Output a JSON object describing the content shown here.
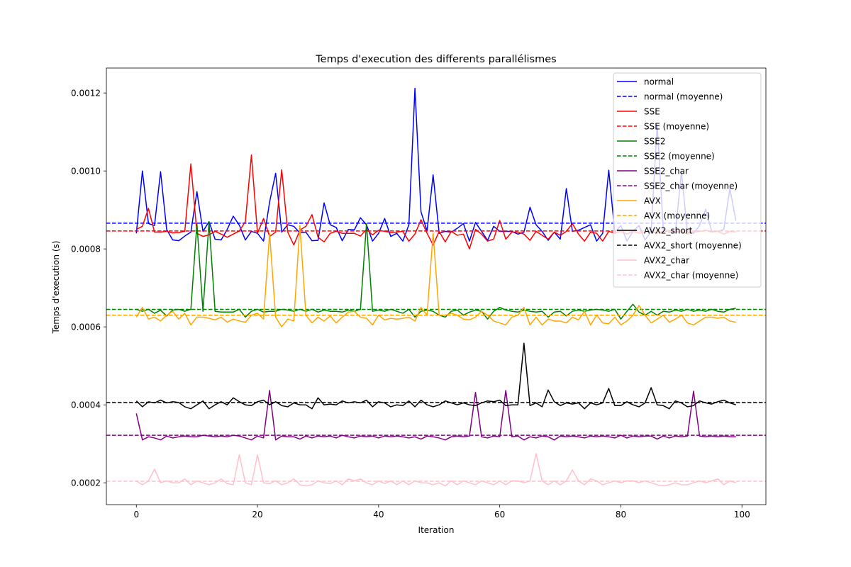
{
  "chart_data": {
    "type": "line",
    "title": "Temps d'execution des differents parallélismes",
    "xlabel": "Iteration",
    "ylabel": "Temps d'execution (s)",
    "xlim": [
      -4.95,
      103.95
    ],
    "ylim": [
      0.000144,
      0.001264
    ],
    "xticks": [
      0,
      20,
      40,
      60,
      80,
      100
    ],
    "yticks": [
      0.0002,
      0.0004,
      0.0006,
      0.0008,
      0.001,
      0.0012
    ],
    "ytick_labels": [
      "0.0002",
      "0.0004",
      "0.0006",
      "0.0008",
      "0.0010",
      "0.0012"
    ],
    "grid": false,
    "legend_position": "upper right",
    "x": [
      0,
      1,
      2,
      3,
      4,
      5,
      6,
      7,
      8,
      9,
      10,
      11,
      12,
      13,
      14,
      15,
      16,
      17,
      18,
      19,
      20,
      21,
      22,
      23,
      24,
      25,
      26,
      27,
      28,
      29,
      30,
      31,
      32,
      33,
      34,
      35,
      36,
      37,
      38,
      39,
      40,
      41,
      42,
      43,
      44,
      45,
      46,
      47,
      48,
      49,
      50,
      51,
      52,
      53,
      54,
      55,
      56,
      57,
      58,
      59,
      60,
      61,
      62,
      63,
      64,
      65,
      66,
      67,
      68,
      69,
      70,
      71,
      72,
      73,
      74,
      75,
      76,
      77,
      78,
      79,
      80,
      81,
      82,
      83,
      84,
      85,
      86,
      87,
      88,
      89,
      90,
      91,
      92,
      93,
      94,
      95,
      96,
      97,
      98,
      99
    ],
    "series": [
      {
        "name": "normal",
        "color": "#0000ff",
        "mean_label": "normal (moyenne)",
        "mean": 0.000866,
        "values": [
          0.00084,
          0.001,
          0.000865,
          0.00086,
          0.000998,
          0.00085,
          0.000823,
          0.000821,
          0.000833,
          0.000843,
          0.000947,
          0.000845,
          0.00087,
          0.000825,
          0.000823,
          0.00085,
          0.000884,
          0.000861,
          0.000823,
          0.000845,
          0.00084,
          0.00082,
          0.00092,
          0.000994,
          0.000843,
          0.000862,
          0.000858,
          0.000841,
          0.000843,
          0.000821,
          0.000822,
          0.000918,
          0.000862,
          0.000855,
          0.000821,
          0.00085,
          0.000849,
          0.00088,
          0.000862,
          0.00082,
          0.00084,
          0.000878,
          0.000832,
          0.00084,
          0.00082,
          0.000862,
          0.001212,
          0.000895,
          0.000846,
          0.00099,
          0.00084,
          0.000845,
          0.000843,
          0.000853,
          0.000865,
          0.00082,
          0.000868,
          0.000845,
          0.000822,
          0.000858,
          0.000845,
          0.000845,
          0.000845,
          0.000838,
          0.000843,
          0.000907,
          0.000862,
          0.000845,
          0.000822,
          0.000843,
          0.000825,
          0.000955,
          0.000845,
          0.000848,
          0.000855,
          0.000862,
          0.00082,
          0.00084,
          0.001002,
          0.000843,
          0.00086,
          0.00082,
          0.000845,
          0.00086,
          0.000823,
          0.000845,
          0.001118,
          0.00085,
          0.000843,
          0.00084,
          0.000998,
          0.000843,
          0.00084,
          0.00086,
          0.000902,
          0.000845,
          0.000845,
          0.00085,
          0.000955,
          0.000872
        ]
      },
      {
        "name": "SSE",
        "color": "#ff0000",
        "mean_label": "SSE (moyenne)",
        "mean": 0.000846,
        "values": [
          0.00085,
          0.000858,
          0.000904,
          0.000843,
          0.000843,
          0.000845,
          0.000841,
          0.000842,
          0.000845,
          0.001018,
          0.00084,
          0.000832,
          0.000836,
          0.000845,
          0.000838,
          0.00083,
          0.000838,
          0.000846,
          0.00087,
          0.001041,
          0.00084,
          0.000878,
          0.000832,
          0.000843,
          0.001003,
          0.000843,
          0.00081,
          0.000848,
          0.000858,
          0.000888,
          0.00083,
          0.000818,
          0.00084,
          0.000845,
          0.00084,
          0.00084,
          0.00084,
          0.000833,
          0.00085,
          0.000836,
          0.000848,
          0.000845,
          0.000842,
          0.000843,
          0.000845,
          0.00082,
          0.000838,
          0.000875,
          0.00084,
          0.00081,
          0.000845,
          0.000818,
          0.000845,
          0.000835,
          0.000838,
          0.0008,
          0.00085,
          0.000838,
          0.00082,
          0.000825,
          0.000873,
          0.000825,
          0.000843,
          0.000843,
          0.000838,
          0.000822,
          0.000845,
          0.000835,
          0.000825,
          0.000843,
          0.000835,
          0.000845,
          0.000865,
          0.000838,
          0.00082,
          0.000843,
          0.00084,
          0.00082,
          0.000845,
          0.00084,
          0.000845,
          0.000838,
          0.000845,
          0.00084,
          0.000843,
          0.000845,
          0.00084,
          0.000845,
          0.000845,
          0.000843,
          0.000845,
          0.000838,
          0.000843,
          0.000845,
          0.000848,
          0.000843,
          0.000845,
          0.000838,
          0.000845,
          0.000843
        ]
      },
      {
        "name": "SSE2",
        "color": "#008000",
        "mean_label": "SSE2 (moyenne)",
        "mean": 0.000645,
        "values": [
          0.000645,
          0.00064,
          0.000645,
          0.000635,
          0.000643,
          0.000628,
          0.000643,
          0.000645,
          0.00064,
          0.000645,
          0.000865,
          0.00064,
          0.00087,
          0.00064,
          0.000638,
          0.000638,
          0.000638,
          0.000645,
          0.000625,
          0.00064,
          0.000645,
          0.000638,
          0.00064,
          0.00064,
          0.000645,
          0.000643,
          0.00064,
          0.000645,
          0.00064,
          0.000645,
          0.000638,
          0.000643,
          0.00064,
          0.00064,
          0.000638,
          0.000643,
          0.00064,
          0.000645,
          0.000865,
          0.00064,
          0.000643,
          0.00064,
          0.000645,
          0.00064,
          0.000635,
          0.000645,
          0.000625,
          0.00064,
          0.000643,
          0.00064,
          0.00063,
          0.000625,
          0.00064,
          0.000643,
          0.00063,
          0.000638,
          0.000643,
          0.00064,
          0.00062,
          0.00064,
          0.00065,
          0.000643,
          0.00064,
          0.000638,
          0.000643,
          0.00064,
          0.000638,
          0.00064,
          0.000625,
          0.000638,
          0.00064,
          0.000628,
          0.00064,
          0.000643,
          0.00064,
          0.000643,
          0.000645,
          0.000643,
          0.00064,
          0.000645,
          0.00062,
          0.00064,
          0.000658,
          0.000638,
          0.00063,
          0.00064,
          0.00063,
          0.00064,
          0.000638,
          0.000643,
          0.00064,
          0.000645,
          0.00064,
          0.000643,
          0.00064,
          0.000645,
          0.00064,
          0.000638,
          0.000645,
          0.000648
        ]
      },
      {
        "name": "SSE2_char",
        "color": "#800080",
        "mean_label": "SSE2_char (moyenne)",
        "mean": 0.000322,
        "values": [
          0.000378,
          0.00031,
          0.000318,
          0.000315,
          0.00031,
          0.00032,
          0.000315,
          0.000318,
          0.00032,
          0.000318,
          0.000318,
          0.000322,
          0.00032,
          0.000318,
          0.00032,
          0.000318,
          0.000322,
          0.00032,
          0.000315,
          0.00031,
          0.00032,
          0.000315,
          0.000437,
          0.00031,
          0.00032,
          0.000318,
          0.000318,
          0.000312,
          0.00032,
          0.000315,
          0.00032,
          0.000318,
          0.00032,
          0.000315,
          0.000322,
          0.000318,
          0.000315,
          0.00032,
          0.000318,
          0.00032,
          0.000315,
          0.00032,
          0.000318,
          0.00032,
          0.000318,
          0.000315,
          0.000318,
          0.000312,
          0.00032,
          0.000318,
          0.000315,
          0.00031,
          0.000318,
          0.00032,
          0.000318,
          0.00032,
          0.000432,
          0.000318,
          0.000315,
          0.00032,
          0.000318,
          0.000437,
          0.000318,
          0.00032,
          0.00031,
          0.000318,
          0.000315,
          0.00032,
          0.000318,
          0.00031,
          0.00032,
          0.000318,
          0.00032,
          0.000318,
          0.000315,
          0.00032,
          0.000318,
          0.00032,
          0.000318,
          0.000315,
          0.000322,
          0.000315,
          0.00032,
          0.000318,
          0.00032,
          0.00032,
          0.000312,
          0.00032,
          0.000315,
          0.00032,
          0.000318,
          0.00032,
          0.000435,
          0.00032,
          0.000318,
          0.00032,
          0.000318,
          0.00032,
          0.000318,
          0.000318
        ]
      },
      {
        "name": "AVX",
        "color": "#ffa500",
        "mean_label": "AVX (moyenne)",
        "mean": 0.00063,
        "values": [
          0.000625,
          0.00065,
          0.00062,
          0.000625,
          0.000615,
          0.00063,
          0.00064,
          0.00062,
          0.000635,
          0.000605,
          0.000625,
          0.000625,
          0.000622,
          0.000618,
          0.000625,
          0.000612,
          0.00062,
          0.000615,
          0.000612,
          0.00063,
          0.000635,
          0.00062,
          0.00084,
          0.000625,
          0.0006,
          0.00062,
          0.000615,
          0.00086,
          0.00063,
          0.00061,
          0.000625,
          0.000615,
          0.000628,
          0.00061,
          0.000625,
          0.000638,
          0.00064,
          0.000625,
          0.000622,
          0.000605,
          0.00063,
          0.000618,
          0.000622,
          0.00062,
          0.000622,
          0.000625,
          0.000615,
          0.00065,
          0.00063,
          0.00084,
          0.00063,
          0.00063,
          0.000635,
          0.00063,
          0.00062,
          0.000618,
          0.000625,
          0.00064,
          0.00063,
          0.000615,
          0.00061,
          0.000605,
          0.000625,
          0.00063,
          0.00065,
          0.000605,
          0.000625,
          0.000605,
          0.00062,
          0.000615,
          0.000615,
          0.00061,
          0.000625,
          0.000618,
          0.00064,
          0.000605,
          0.00063,
          0.00061,
          0.000608,
          0.000625,
          0.000605,
          0.000615,
          0.00063,
          0.000655,
          0.00063,
          0.00061,
          0.00062,
          0.00063,
          0.000612,
          0.00062,
          0.00063,
          0.00061,
          0.000605,
          0.000615,
          0.000625,
          0.000625,
          0.000622,
          0.000625,
          0.000615,
          0.000612
        ]
      },
      {
        "name": "AVX2_short",
        "color": "#000000",
        "mean_label": "AVX2_short (moyenne)",
        "mean": 0.000406,
        "values": [
          0.00041,
          0.000395,
          0.000408,
          0.000405,
          0.000412,
          0.000405,
          0.000408,
          0.000406,
          0.000395,
          0.00039,
          0.0004,
          0.00041,
          0.00039,
          0.0004,
          0.000408,
          0.0004,
          0.000418,
          0.000408,
          0.0004,
          0.000398,
          0.000408,
          0.000412,
          0.0004,
          0.000408,
          0.000398,
          0.000395,
          0.000405,
          0.0004,
          0.0004,
          0.00039,
          0.000418,
          0.0004,
          0.000402,
          0.0004,
          0.00041,
          0.000405,
          0.000408,
          0.000405,
          0.000412,
          0.000395,
          0.000408,
          0.000405,
          0.000395,
          0.0004,
          0.000398,
          0.00041,
          0.000395,
          0.000412,
          0.0004,
          0.000395,
          0.0004,
          0.00041,
          0.000405,
          0.0004,
          0.000405,
          0.0004,
          0.000398,
          0.000405,
          0.00041,
          0.000408,
          0.000412,
          0.000398,
          0.0004,
          0.0004,
          0.000558,
          0.000398,
          0.000405,
          0.000395,
          0.000438,
          0.000408,
          0.000398,
          0.000405,
          0.000402,
          0.000405,
          0.00039,
          0.000405,
          0.0004,
          0.000405,
          0.000442,
          0.000398,
          0.000398,
          0.000408,
          0.0004,
          0.000395,
          0.000405,
          0.000444,
          0.0004,
          0.000398,
          0.00039,
          0.00041,
          0.000405,
          0.000395,
          0.000398,
          0.00041,
          0.000405,
          0.000402,
          0.000408,
          0.000412,
          0.000405,
          0.0004
        ]
      },
      {
        "name": "AVX2_char",
        "color": "#ffc0cb",
        "mean_label": "AVX2_char (moyenne)",
        "mean": 0.000204,
        "values": [
          0.000205,
          0.000195,
          0.000205,
          0.000235,
          0.0002,
          0.000205,
          0.0002,
          0.0002,
          0.00021,
          0.000195,
          0.000205,
          0.0002,
          0.000195,
          0.0002,
          0.00021,
          0.000198,
          0.000195,
          0.000272,
          0.0002,
          0.000195,
          0.000272,
          0.0002,
          0.000198,
          0.000205,
          0.000195,
          0.0002,
          0.00021,
          0.000195,
          0.000192,
          0.000195,
          0.000205,
          0.0002,
          0.000198,
          0.000205,
          0.000195,
          0.00021,
          0.000205,
          0.00021,
          0.0002,
          0.000195,
          0.000205,
          0.000198,
          0.000205,
          0.000195,
          0.000205,
          0.000195,
          0.000205,
          0.0002,
          0.0002,
          0.000195,
          0.0002,
          0.000192,
          0.000205,
          0.000195,
          0.000205,
          0.0002,
          0.000195,
          0.000205,
          0.0002,
          0.000195,
          0.000205,
          0.000195,
          0.000205,
          0.000205,
          0.0002,
          0.000205,
          0.000275,
          0.000205,
          0.000195,
          0.000205,
          0.000195,
          0.000205,
          0.000233,
          0.000205,
          0.000195,
          0.00021,
          0.000205,
          0.000195,
          0.0002,
          0.000205,
          0.0002,
          0.000205,
          0.000205,
          0.0002,
          0.000205,
          0.0002,
          0.000195,
          0.000192,
          0.000195,
          0.0002,
          0.000195,
          0.000195,
          0.0002,
          0.000205,
          0.0002,
          0.000205,
          0.00021,
          0.000195,
          0.000205,
          0.0002
        ]
      }
    ]
  }
}
